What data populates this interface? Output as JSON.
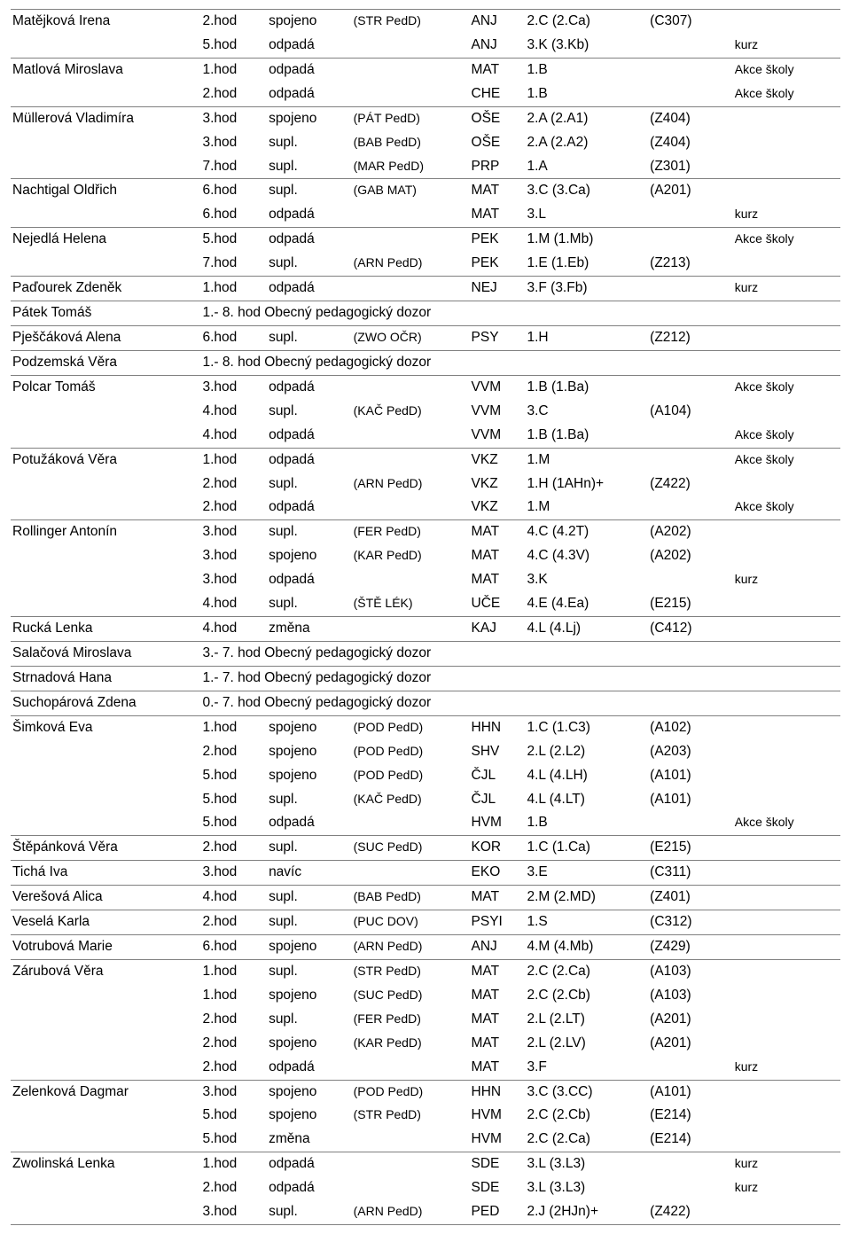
{
  "colors": {
    "border": "#808080",
    "text": "#000000",
    "bg": "#ffffff"
  },
  "font": {
    "family": "Arial",
    "size_pt": 12,
    "small_pt": 10
  },
  "columns": [
    "teacher",
    "period",
    "action",
    "action_detail",
    "subject",
    "class",
    "room",
    "note"
  ],
  "rows": [
    {
      "tb": true,
      "teacher": "Matějková Irena",
      "period": "2.hod",
      "action": "spojeno",
      "detail": "(STR PedD)",
      "subj": "ANJ",
      "cls": "2.C (2.Ca)",
      "room": "(C307)",
      "note": ""
    },
    {
      "tb": false,
      "teacher": "",
      "period": "5.hod",
      "action": "odpadá",
      "detail": "",
      "subj": "ANJ",
      "cls": "3.K (3.Kb)",
      "room": "",
      "note": "kurz"
    },
    {
      "tb": true,
      "teacher": "Matlová Miroslava",
      "period": "1.hod",
      "action": "odpadá",
      "detail": "",
      "subj": "MAT",
      "cls": "1.B",
      "room": "",
      "note": "Akce školy"
    },
    {
      "tb": false,
      "teacher": "",
      "period": "2.hod",
      "action": "odpadá",
      "detail": "",
      "subj": "CHE",
      "cls": "1.B",
      "room": "",
      "note": "Akce školy"
    },
    {
      "tb": true,
      "teacher": "Müllerová Vladimíra",
      "period": "3.hod",
      "action": "spojeno",
      "detail": "(PÁT PedD)",
      "subj": "OŠE",
      "cls": "2.A (2.A1)",
      "room": "(Z404)",
      "note": ""
    },
    {
      "tb": false,
      "teacher": "",
      "period": "3.hod",
      "action": "supl.",
      "detail": "(BAB PedD)",
      "subj": "OŠE",
      "cls": "2.A (2.A2)",
      "room": "(Z404)",
      "note": ""
    },
    {
      "tb": false,
      "teacher": "",
      "period": "7.hod",
      "action": "supl.",
      "detail": "(MAR PedD)",
      "subj": "PRP",
      "cls": "1.A",
      "room": "(Z301)",
      "note": ""
    },
    {
      "tb": true,
      "teacher": "Nachtigal Oldřich",
      "period": "6.hod",
      "action": "supl.",
      "detail": "(GAB MAT)",
      "subj": "MAT",
      "cls": "3.C (3.Ca)",
      "room": "(A201)",
      "note": ""
    },
    {
      "tb": false,
      "teacher": "",
      "period": "6.hod",
      "action": "odpadá",
      "detail": "",
      "subj": "MAT",
      "cls": "3.L",
      "room": "",
      "note": "kurz"
    },
    {
      "tb": true,
      "teacher": "Nejedlá Helena",
      "period": "5.hod",
      "action": "odpadá",
      "detail": "",
      "subj": "PEK",
      "cls": "1.M (1.Mb)",
      "room": "",
      "note": "Akce školy"
    },
    {
      "tb": false,
      "teacher": "",
      "period": "7.hod",
      "action": "supl.",
      "detail": "(ARN PedD)",
      "subj": "PEK",
      "cls": "1.E (1.Eb)",
      "room": "(Z213)",
      "note": ""
    },
    {
      "tb": true,
      "teacher": "Paďourek Zdeněk",
      "period": "1.hod",
      "action": "odpadá",
      "detail": "",
      "subj": "NEJ",
      "cls": "3.F (3.Fb)",
      "room": "",
      "note": "kurz"
    },
    {
      "tb": true,
      "teacher": "Pátek Tomáš",
      "span": "1.- 8. hod Obecný pedagogický dozor"
    },
    {
      "tb": true,
      "teacher": "Pješčáková Alena",
      "period": "6.hod",
      "action": "supl.",
      "detail": "(ZWO OČR)",
      "subj": "PSY",
      "cls": "1.H",
      "room": "(Z212)",
      "note": ""
    },
    {
      "tb": true,
      "teacher": "Podzemská Věra",
      "span": "1.- 8. hod Obecný pedagogický dozor"
    },
    {
      "tb": true,
      "teacher": "Polcar Tomáš",
      "period": "3.hod",
      "action": "odpadá",
      "detail": "",
      "subj": "VVM",
      "cls": "1.B (1.Ba)",
      "room": "",
      "note": "Akce školy"
    },
    {
      "tb": false,
      "teacher": "",
      "period": "4.hod",
      "action": "supl.",
      "detail": "(KAČ PedD)",
      "subj": "VVM",
      "cls": "3.C",
      "room": "(A104)",
      "note": ""
    },
    {
      "tb": false,
      "teacher": "",
      "period": "4.hod",
      "action": "odpadá",
      "detail": "",
      "subj": "VVM",
      "cls": "1.B (1.Ba)",
      "room": "",
      "note": "Akce školy"
    },
    {
      "tb": true,
      "teacher": "Potužáková Věra",
      "period": "1.hod",
      "action": "odpadá",
      "detail": "",
      "subj": "VKZ",
      "cls": "1.M",
      "room": "",
      "note": "Akce školy"
    },
    {
      "tb": false,
      "teacher": "",
      "period": "2.hod",
      "action": "supl.",
      "detail": "(ARN PedD)",
      "subj": "VKZ",
      "cls": "1.H (1AHn)+",
      "room": "(Z422)",
      "note": ""
    },
    {
      "tb": false,
      "teacher": "",
      "period": "2.hod",
      "action": "odpadá",
      "detail": "",
      "subj": "VKZ",
      "cls": "1.M",
      "room": "",
      "note": "Akce školy"
    },
    {
      "tb": true,
      "teacher": "Rollinger Antonín",
      "period": "3.hod",
      "action": "supl.",
      "detail": "(FER PedD)",
      "subj": "MAT",
      "cls": "4.C (4.2T)",
      "room": "(A202)",
      "note": ""
    },
    {
      "tb": false,
      "teacher": "",
      "period": "3.hod",
      "action": "spojeno",
      "detail": "(KAR PedD)",
      "subj": "MAT",
      "cls": "4.C (4.3V)",
      "room": "(A202)",
      "note": ""
    },
    {
      "tb": false,
      "teacher": "",
      "period": "3.hod",
      "action": "odpadá",
      "detail": "",
      "subj": "MAT",
      "cls": "3.K",
      "room": "",
      "note": "kurz"
    },
    {
      "tb": false,
      "teacher": "",
      "period": "4.hod",
      "action": "supl.",
      "detail": "(ŠTĚ LÉK)",
      "subj": "UČE",
      "cls": "4.E (4.Ea)",
      "room": "(E215)",
      "note": ""
    },
    {
      "tb": true,
      "teacher": "Rucká Lenka",
      "period": "4.hod",
      "action": "změna",
      "detail": "",
      "subj": "KAJ",
      "cls": "4.L (4.Lj)",
      "room": "(C412)",
      "note": ""
    },
    {
      "tb": true,
      "teacher": "Salačová Miroslava",
      "span": "3.- 7. hod Obecný pedagogický dozor"
    },
    {
      "tb": true,
      "teacher": "Strnadová Hana",
      "span": "1.- 7. hod Obecný pedagogický dozor"
    },
    {
      "tb": true,
      "teacher": "Suchopárová Zdena",
      "span": "0.- 7. hod Obecný pedagogický dozor"
    },
    {
      "tb": true,
      "teacher": "Šimková Eva",
      "period": "1.hod",
      "action": "spojeno",
      "detail": "(POD PedD)",
      "subj": "HHN",
      "cls": "1.C (1.C3)",
      "room": "(A102)",
      "note": ""
    },
    {
      "tb": false,
      "teacher": "",
      "period": "2.hod",
      "action": "spojeno",
      "detail": "(POD PedD)",
      "subj": "SHV",
      "cls": "2.L (2.L2)",
      "room": "(A203)",
      "note": ""
    },
    {
      "tb": false,
      "teacher": "",
      "period": "5.hod",
      "action": "spojeno",
      "detail": "(POD PedD)",
      "subj": "ČJL",
      "cls": "4.L (4.LH)",
      "room": "(A101)",
      "note": ""
    },
    {
      "tb": false,
      "teacher": "",
      "period": "5.hod",
      "action": "supl.",
      "detail": "(KAČ PedD)",
      "subj": "ČJL",
      "cls": "4.L (4.LT)",
      "room": "(A101)",
      "note": ""
    },
    {
      "tb": false,
      "teacher": "",
      "period": "5.hod",
      "action": "odpadá",
      "detail": "",
      "subj": "HVM",
      "cls": "1.B",
      "room": "",
      "note": "Akce školy"
    },
    {
      "tb": true,
      "teacher": "Štěpánková Věra",
      "period": "2.hod",
      "action": "supl.",
      "detail": "(SUC PedD)",
      "subj": "KOR",
      "cls": "1.C (1.Ca)",
      "room": "(E215)",
      "note": ""
    },
    {
      "tb": true,
      "teacher": "Tichá Iva",
      "period": "3.hod",
      "action": "navíc",
      "detail": "",
      "subj": "EKO",
      "cls": "3.E",
      "room": "(C311)",
      "note": ""
    },
    {
      "tb": true,
      "teacher": "Verešová Alica",
      "period": "4.hod",
      "action": "supl.",
      "detail": "(BAB PedD)",
      "subj": "MAT",
      "cls": "2.M (2.MD)",
      "room": "(Z401)",
      "note": ""
    },
    {
      "tb": true,
      "teacher": "Veselá Karla",
      "period": "2.hod",
      "action": "supl.",
      "detail": "(PUC DOV)",
      "subj": "PSYI",
      "cls": "1.S",
      "room": "(C312)",
      "note": ""
    },
    {
      "tb": true,
      "teacher": "Votrubová Marie",
      "period": "6.hod",
      "action": "spojeno",
      "detail": "(ARN PedD)",
      "subj": "ANJ",
      "cls": "4.M (4.Mb)",
      "room": "(Z429)",
      "note": ""
    },
    {
      "tb": true,
      "teacher": "Zárubová Věra",
      "period": "1.hod",
      "action": "supl.",
      "detail": "(STR PedD)",
      "subj": "MAT",
      "cls": "2.C (2.Ca)",
      "room": "(A103)",
      "note": ""
    },
    {
      "tb": false,
      "teacher": "",
      "period": "1.hod",
      "action": "spojeno",
      "detail": "(SUC PedD)",
      "subj": "MAT",
      "cls": "2.C (2.Cb)",
      "room": "(A103)",
      "note": ""
    },
    {
      "tb": false,
      "teacher": "",
      "period": "2.hod",
      "action": "supl.",
      "detail": "(FER PedD)",
      "subj": "MAT",
      "cls": "2.L (2.LT)",
      "room": "(A201)",
      "note": ""
    },
    {
      "tb": false,
      "teacher": "",
      "period": "2.hod",
      "action": "spojeno",
      "detail": "(KAR PedD)",
      "subj": "MAT",
      "cls": "2.L (2.LV)",
      "room": "(A201)",
      "note": ""
    },
    {
      "tb": false,
      "teacher": "",
      "period": "2.hod",
      "action": "odpadá",
      "detail": "",
      "subj": "MAT",
      "cls": "3.F",
      "room": "",
      "note": "kurz"
    },
    {
      "tb": true,
      "teacher": "Zelenková Dagmar",
      "period": "3.hod",
      "action": "spojeno",
      "detail": "(POD PedD)",
      "subj": "HHN",
      "cls": "3.C (3.CC)",
      "room": "(A101)",
      "note": ""
    },
    {
      "tb": false,
      "teacher": "",
      "period": "5.hod",
      "action": "spojeno",
      "detail": "(STR PedD)",
      "subj": "HVM",
      "cls": "2.C (2.Cb)",
      "room": "(E214)",
      "note": ""
    },
    {
      "tb": false,
      "teacher": "",
      "period": "5.hod",
      "action": "změna",
      "detail": "",
      "subj": "HVM",
      "cls": "2.C (2.Ca)",
      "room": "(E214)",
      "note": ""
    },
    {
      "tb": true,
      "teacher": "Zwolinská Lenka",
      "period": "1.hod",
      "action": "odpadá",
      "detail": "",
      "subj": "SDE",
      "cls": "3.L (3.L3)",
      "room": "",
      "note": "kurz"
    },
    {
      "tb": false,
      "teacher": "",
      "period": "2.hod",
      "action": "odpadá",
      "detail": "",
      "subj": "SDE",
      "cls": "3.L (3.L3)",
      "room": "",
      "note": "kurz"
    },
    {
      "tb": false,
      "teacher": "",
      "period": "3.hod",
      "action": "supl.",
      "detail": "(ARN PedD)",
      "subj": "PED",
      "cls": "2.J (2HJn)+",
      "room": "(Z422)",
      "note": ""
    }
  ]
}
